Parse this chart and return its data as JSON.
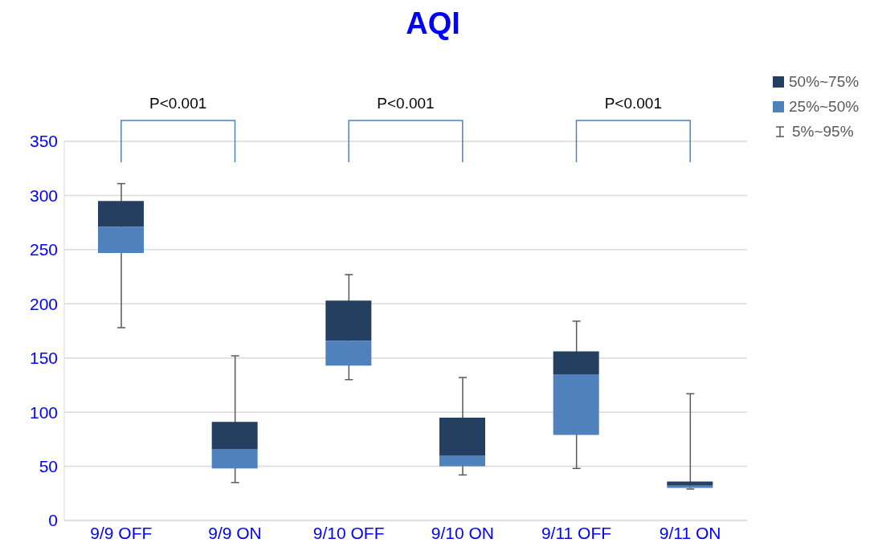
{
  "chart_data": {
    "type": "bar",
    "title": "AQI",
    "categories": [
      "9/9 OFF",
      "9/9 ON",
      "9/10 OFF",
      "9/10 ON",
      "9/11 OFF",
      "9/11 ON"
    ],
    "series": [
      {
        "name": "50%~75%",
        "color": "#243f60",
        "base": [
          271,
          66,
          166,
          60,
          135,
          32
        ],
        "values": [
          24,
          25,
          37,
          35,
          21,
          4
        ]
      },
      {
        "name": "25%~50%",
        "color": "#4f81bd",
        "base": [
          247,
          48,
          143,
          50,
          79,
          30
        ],
        "values": [
          24,
          18,
          23,
          10,
          56,
          2
        ],
        "errors": [
          [
            178,
            311
          ],
          [
            35,
            152
          ],
          [
            130,
            227
          ],
          [
            42,
            132
          ],
          [
            48,
            184
          ],
          [
            29,
            117
          ]
        ]
      },
      {
        "name": "5%~95%",
        "color": "#595959",
        "values": [
          null,
          null,
          null,
          null,
          null,
          null
        ]
      }
    ],
    "ylim": [
      0,
      350
    ],
    "yticks": [
      0,
      50,
      100,
      150,
      200,
      250,
      300,
      350
    ],
    "grid": "y",
    "legend": "top right",
    "annotations": [
      "P<0.001",
      "P<0.001",
      "P<0.001"
    ]
  }
}
